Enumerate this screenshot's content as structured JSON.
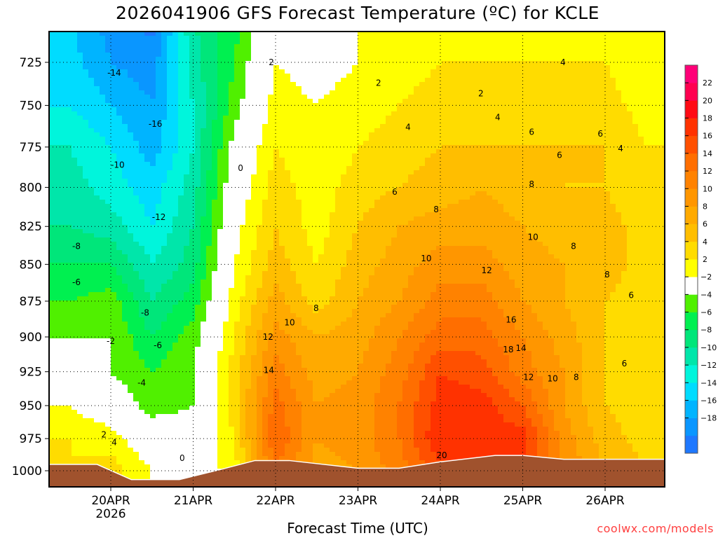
{
  "chart_data": {
    "type": "heatmap",
    "title": "2026041906 GFS Forecast Temperature (ºC) for KCLE",
    "xlabel": "Forecast Time (UTC)",
    "ylabel": "Pressure (hPa)",
    "credit": "coolwx.com/models",
    "x_units": "hours since 19APR 00Z",
    "xlim": [
      6,
      186
    ],
    "ylim": [
      1013,
      707
    ],
    "x_ticks": [
      {
        "hour": 24,
        "label": "20APR",
        "sublabel": "2026"
      },
      {
        "hour": 48,
        "label": "21APR"
      },
      {
        "hour": 72,
        "label": "22APR"
      },
      {
        "hour": 96,
        "label": "23APR"
      },
      {
        "hour": 120,
        "label": "24APR"
      },
      {
        "hour": 144,
        "label": "25APR"
      },
      {
        "hour": 168,
        "label": "26APR"
      }
    ],
    "y_ticks": [
      "725",
      "750",
      "775",
      "800",
      "825",
      "850",
      "875",
      "900",
      "925",
      "950",
      "975",
      "1000"
    ],
    "grid": true,
    "hours": [
      12,
      24,
      36,
      48,
      60,
      72,
      84,
      96,
      108,
      120,
      132,
      144,
      156,
      168,
      180
    ],
    "levels": [
      1000,
      975,
      950,
      925,
      900,
      875,
      850,
      825,
      800,
      775,
      750,
      725,
      700
    ],
    "temperature": [
      [
        4,
        4,
        2,
        0,
        -2,
        -4,
        -6,
        -8,
        -9,
        -10,
        -12,
        -13,
        -14
      ],
      [
        5,
        3,
        0,
        -2,
        -2,
        -3,
        -6,
        -9,
        -11,
        -12,
        -14,
        -16,
        -17
      ],
      [
        2,
        0,
        -3,
        -4,
        -6,
        -8,
        -10,
        -12,
        -13,
        -15,
        -16,
        -17,
        -19
      ],
      [
        0,
        -1,
        -2,
        -2,
        -3,
        -5,
        -7,
        -8,
        -9,
        -10,
        -10,
        -9,
        -8
      ],
      [
        3,
        4,
        5,
        5,
        4,
        3,
        2,
        1,
        0,
        -1,
        -3,
        -4,
        -5
      ],
      [
        14,
        16,
        15,
        13,
        11,
        9,
        7,
        6,
        5,
        4,
        3,
        2,
        1
      ],
      [
        9,
        10,
        10,
        9,
        8,
        5,
        4,
        3,
        3,
        2,
        2,
        1,
        0
      ],
      [
        10,
        11,
        11,
        10,
        9,
        8,
        7,
        6,
        5,
        4,
        3,
        2,
        2
      ],
      [
        13,
        14,
        14,
        13,
        12,
        10,
        9,
        8,
        6,
        5,
        4,
        3,
        2
      ],
      [
        17,
        20,
        19,
        18,
        15,
        13,
        11,
        9,
        7,
        6,
        5,
        4,
        3
      ],
      [
        18,
        19,
        19,
        17,
        15,
        13,
        11,
        9,
        8,
        6,
        5,
        4,
        3
      ],
      [
        18,
        19,
        16,
        13,
        12,
        10,
        9,
        8,
        7,
        6,
        5,
        4,
        3
      ],
      [
        12,
        11,
        10,
        10,
        9,
        8,
        8,
        7,
        6,
        6,
        5,
        4,
        3
      ],
      [
        8,
        7,
        6,
        6,
        6,
        6,
        7,
        7,
        6,
        6,
        5,
        4,
        3
      ],
      [
        6,
        5,
        5,
        5,
        5,
        5,
        5,
        5,
        4,
        4,
        3,
        2,
        2
      ]
    ],
    "surface_pressure": {
      "hours": [
        6,
        20,
        30,
        44,
        56,
        66,
        76,
        96,
        108,
        120,
        136,
        144,
        156,
        186
      ],
      "hPa": [
        995,
        995,
        1007,
        1007,
        999,
        992,
        992,
        998,
        998,
        993,
        988,
        988,
        991,
        991
      ]
    },
    "contour_labels": [
      {
        "text": "-14",
        "hour": 25,
        "hPa": 731
      },
      {
        "text": "-16",
        "hour": 37,
        "hPa": 761
      },
      {
        "text": "-10",
        "hour": 26,
        "hPa": 786
      },
      {
        "text": "-12",
        "hour": 38,
        "hPa": 819
      },
      {
        "text": "-8",
        "hour": 14,
        "hPa": 838
      },
      {
        "text": "-6",
        "hour": 14,
        "hPa": 862
      },
      {
        "text": "-8",
        "hour": 34,
        "hPa": 883
      },
      {
        "text": "-2",
        "hour": 24,
        "hPa": 903
      },
      {
        "text": "-6",
        "hour": 37.7,
        "hPa": 906
      },
      {
        "text": "-4",
        "hour": 33,
        "hPa": 933
      },
      {
        "text": "2",
        "hour": 22,
        "hPa": 972
      },
      {
        "text": "4",
        "hour": 25,
        "hPa": 978
      },
      {
        "text": "0",
        "hour": 44.8,
        "hPa": 990
      },
      {
        "text": "0",
        "hour": 61.8,
        "hPa": 788
      },
      {
        "text": "2",
        "hour": 70.8,
        "hPa": 725
      },
      {
        "text": "2",
        "hour": 102,
        "hPa": 737
      },
      {
        "text": "2",
        "hour": 131.8,
        "hPa": 743
      },
      {
        "text": "4",
        "hour": 110.6,
        "hPa": 763
      },
      {
        "text": "4",
        "hour": 136.7,
        "hPa": 757
      },
      {
        "text": "4",
        "hour": 155.7,
        "hPa": 725
      },
      {
        "text": "4",
        "hour": 172.5,
        "hPa": 776
      },
      {
        "text": "6",
        "hour": 106.7,
        "hPa": 803
      },
      {
        "text": "6",
        "hour": 146.6,
        "hPa": 766
      },
      {
        "text": "6",
        "hour": 154.7,
        "hPa": 780
      },
      {
        "text": "6",
        "hour": 166.6,
        "hPa": 767
      },
      {
        "text": "6",
        "hour": 175.6,
        "hPa": 871
      },
      {
        "text": "6",
        "hour": 173.6,
        "hPa": 919
      },
      {
        "text": "8",
        "hour": 118.8,
        "hPa": 814
      },
      {
        "text": "8",
        "hour": 146.6,
        "hPa": 798
      },
      {
        "text": "8",
        "hour": 158.8,
        "hPa": 838
      },
      {
        "text": "8",
        "hour": 168.6,
        "hPa": 857
      },
      {
        "text": "8",
        "hour": 83.8,
        "hPa": 880
      },
      {
        "text": "8",
        "hour": 159.6,
        "hPa": 929
      },
      {
        "text": "10",
        "hour": 76.1,
        "hPa": 890
      },
      {
        "text": "10",
        "hour": 115.9,
        "hPa": 846
      },
      {
        "text": "10",
        "hour": 147,
        "hPa": 832
      },
      {
        "text": "10",
        "hour": 152.7,
        "hPa": 930
      },
      {
        "text": "12",
        "hour": 69.8,
        "hPa": 900
      },
      {
        "text": "12",
        "hour": 133.5,
        "hPa": 854
      },
      {
        "text": "12",
        "hour": 145.7,
        "hPa": 929
      },
      {
        "text": "14",
        "hour": 70,
        "hPa": 924
      },
      {
        "text": "14",
        "hour": 143.5,
        "hPa": 908
      },
      {
        "text": "16",
        "hour": 140.6,
        "hPa": 888
      },
      {
        "text": "18",
        "hour": 139.8,
        "hPa": 909
      },
      {
        "text": "20",
        "hour": 120.4,
        "hPa": 988
      }
    ],
    "colorbar": {
      "boundaries": [
        -20,
        -18,
        -16,
        -14,
        -12,
        -10,
        -8,
        -6,
        -4,
        -2,
        2,
        4,
        6,
        8,
        10,
        12,
        14,
        16,
        18,
        20,
        22,
        24
      ],
      "labels": [
        "22",
        "20",
        "18",
        "16",
        "14",
        "12",
        "10",
        "8",
        "6",
        "4",
        "2",
        "−2",
        "−4",
        "−6",
        "−8",
        "−10",
        "−12",
        "−14",
        "−16",
        "−18"
      ],
      "colors": [
        "#1e78ff",
        "#0a96ff",
        "#00b4ff",
        "#00dcff",
        "#00f5dc",
        "#00e6aa",
        "#00e67a",
        "#00f050",
        "#50f000",
        "#ffffff",
        "#ffff00",
        "#ffdc00",
        "#ffbe00",
        "#ffaa00",
        "#ff9600",
        "#ff8200",
        "#ff6e00",
        "#ff5000",
        "#ff3200",
        "#ff0a14",
        "#ff0050",
        "#ff0078"
      ]
    },
    "terrain_color": "#a0522d"
  }
}
